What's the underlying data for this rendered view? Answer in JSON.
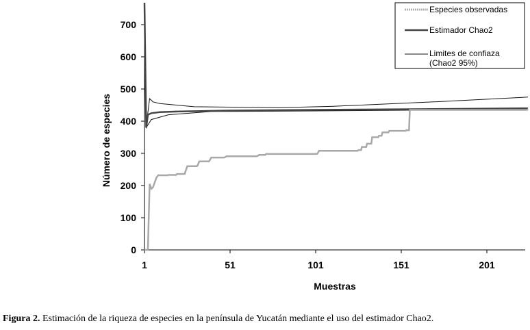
{
  "caption": {
    "label": "Figura 2.",
    "text": " Estimación de la riqueza de especies en la península de Yucatán mediante el uso del estimador Chao2."
  },
  "chart_data": {
    "type": "line",
    "title": "",
    "xlabel": "Muestras",
    "ylabel": "Número de especies",
    "xlim": [
      1,
      225
    ],
    "ylim": [
      0,
      700
    ],
    "xticks": [
      1,
      51,
      101,
      151,
      201
    ],
    "yticks": [
      0,
      100,
      200,
      300,
      400,
      500,
      600,
      700
    ],
    "grid": false,
    "legend_position": "top-right",
    "series": [
      {
        "name": "Especies observadas",
        "color": "#a8a8a8",
        "points": [
          [
            1,
            0
          ],
          [
            3,
            0
          ],
          [
            4,
            205
          ],
          [
            5,
            190
          ],
          [
            6,
            195
          ],
          [
            7,
            210
          ],
          [
            8,
            225
          ],
          [
            9,
            232
          ],
          [
            15,
            233
          ],
          [
            20,
            236
          ],
          [
            25,
            245
          ],
          [
            26,
            260
          ],
          [
            32,
            262
          ],
          [
            33,
            275
          ],
          [
            39,
            277
          ],
          [
            40,
            287
          ],
          [
            48,
            288
          ],
          [
            49,
            291
          ],
          [
            67,
            292
          ],
          [
            68,
            295
          ],
          [
            72,
            298
          ],
          [
            102,
            299
          ],
          [
            103,
            308
          ],
          [
            126,
            310
          ],
          [
            128,
            320
          ],
          [
            131,
            330
          ],
          [
            134,
            350
          ],
          [
            138,
            355
          ],
          [
            140,
            365
          ],
          [
            144,
            370
          ],
          [
            154,
            372
          ],
          [
            156,
            435
          ],
          [
            225,
            438
          ]
        ]
      },
      {
        "name": "Estimador Chao2",
        "color": "#444444",
        "points": [
          [
            1,
            770
          ],
          [
            2,
            380
          ],
          [
            3,
            420
          ],
          [
            5,
            425
          ],
          [
            10,
            428
          ],
          [
            20,
            430
          ],
          [
            50,
            433
          ],
          [
            100,
            435
          ],
          [
            150,
            437
          ],
          [
            225,
            440
          ]
        ]
      },
      {
        "name": "Limites de confiaza (Chao2 95%)",
        "label_line2": "(Chao2 95%)",
        "color": "#111111",
        "points_upper": [
          [
            1,
            770
          ],
          [
            2,
            385
          ],
          [
            4,
            470
          ],
          [
            6,
            460
          ],
          [
            10,
            455
          ],
          [
            30,
            445
          ],
          [
            80,
            442
          ],
          [
            110,
            446
          ],
          [
            170,
            460
          ],
          [
            225,
            475
          ]
        ],
        "points_lower": [
          [
            1,
            700
          ],
          [
            2,
            380
          ],
          [
            5,
            405
          ],
          [
            15,
            420
          ],
          [
            40,
            430
          ],
          [
            100,
            432
          ],
          [
            225,
            437
          ]
        ]
      }
    ]
  },
  "legend": {
    "item1": "Especies observadas",
    "item2": "Estimador Chao2",
    "item3a": "Limites de confiaza",
    "item3b": "(Chao2 95%)"
  }
}
